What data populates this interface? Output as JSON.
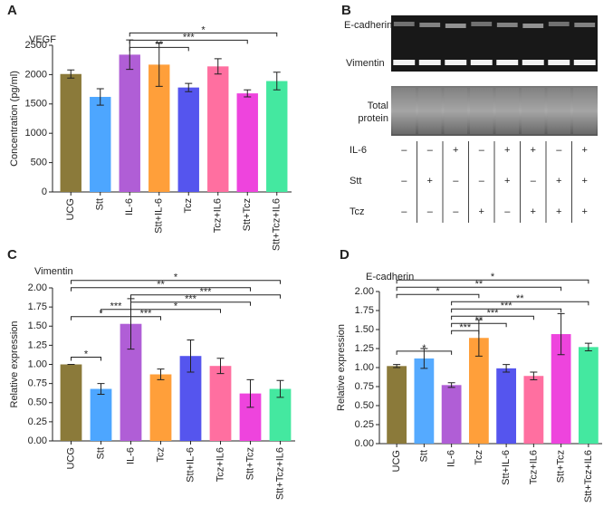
{
  "chart_data": [
    {
      "type": "bar",
      "label": "A",
      "title": "VEGF",
      "y_label": "Concentration (pg/ml)",
      "categories": [
        "UCG",
        "Stt",
        "IL-6",
        "Stt+IL-6",
        "Tcz",
        "Tcz+IL6",
        "Stt+Tcz",
        "Stt+Tcz+IL6"
      ],
      "values": [
        2010,
        1620,
        2340,
        2170,
        1780,
        2140,
        1680,
        1890
      ],
      "errors": [
        70,
        140,
        250,
        370,
        70,
        130,
        60,
        150
      ],
      "colors": [
        "#8b7a3a",
        "#4da6ff",
        "#b05ed6",
        "#ff9f3a",
        "#5555ee",
        "#ff6fa0",
        "#ee44dd",
        "#44e8a0"
      ],
      "ylim": [
        0,
        2500
      ],
      "yticks": [
        0,
        500,
        1000,
        1500,
        2000,
        2500
      ],
      "comparisons": [
        {
          "from": "IL-6",
          "to": "Tcz",
          "label": "**"
        },
        {
          "from": "IL-6",
          "to": "Stt+Tcz",
          "label": "***"
        },
        {
          "from": "IL-6",
          "to": "Stt+Tcz+IL6",
          "label": "*"
        }
      ]
    },
    {
      "type": "bar",
      "label": "C",
      "title": "Vimentin",
      "y_label": "Relative expression",
      "categories": [
        "UCG",
        "Stt",
        "IL-6",
        "Tcz",
        "Stt+IL-6",
        "Tcz+IL6",
        "Stt+Tcz",
        "Stt+Tcz+IL6"
      ],
      "values": [
        1.0,
        0.68,
        1.53,
        0.87,
        1.11,
        0.98,
        0.62,
        0.68
      ],
      "errors": [
        0,
        0.07,
        0.33,
        0.07,
        0.21,
        0.1,
        0.18,
        0.11
      ],
      "colors": [
        "#8b7a3a",
        "#4da6ff",
        "#b05ed6",
        "#ff9f3a",
        "#5555ee",
        "#ff6fa0",
        "#ee44dd",
        "#44e8a0"
      ],
      "ylim": [
        0,
        2
      ],
      "yticks": [
        {
          "value": 0,
          "label": "0.00"
        },
        {
          "value": 0.25,
          "label": "0.25"
        },
        {
          "value": 0.5,
          "label": "0.50"
        },
        {
          "value": 0.75,
          "label": "0.75"
        },
        {
          "value": 1,
          "label": "1.00"
        },
        {
          "value": 1.25,
          "label": "1.25"
        },
        {
          "value": 1.5,
          "label": "1.50"
        },
        {
          "value": 1.75,
          "label": "1.75"
        },
        {
          "value": 2,
          "label": "2.00"
        }
      ],
      "comparisons": [
        {
          "from": "UCG",
          "to": "Stt",
          "label": "*"
        },
        {
          "from": "UCG",
          "to": "IL-6",
          "label": "*"
        },
        {
          "from": "Stt",
          "to": "IL-6",
          "label": "***"
        },
        {
          "from": "IL-6",
          "to": "Tcz",
          "label": "***"
        },
        {
          "from": "IL-6",
          "to": "Tcz+IL6",
          "label": "*"
        },
        {
          "from": "IL-6",
          "to": "Stt+Tcz",
          "label": "***"
        },
        {
          "from": "IL-6",
          "to": "Stt+Tcz+IL6",
          "label": "***"
        },
        {
          "from": "UCG",
          "to": "Stt+Tcz",
          "label": "**"
        },
        {
          "from": "UCG",
          "to": "Stt+Tcz+IL6",
          "label": "*"
        }
      ]
    },
    {
      "type": "bar",
      "label": "D",
      "title": "E-cadherin",
      "y_label": "Relative expression",
      "categories": [
        "UCG",
        "Stt",
        "IL-6",
        "Tcz",
        "Stt+IL-6",
        "Tcz+IL6",
        "Stt+Tcz",
        "Stt+Tcz+IL6"
      ],
      "values": [
        1.02,
        1.12,
        0.77,
        1.39,
        0.99,
        0.89,
        1.44,
        1.27
      ],
      "errors": [
        0.02,
        0.13,
        0.03,
        0.24,
        0.05,
        0.05,
        0.27,
        0.05
      ],
      "colors": [
        "#8b7a3a",
        "#55aaff",
        "#b05ed6",
        "#ff9f3a",
        "#5555ee",
        "#ff6fa0",
        "#ee44dd",
        "#44e8a0"
      ],
      "ylim": [
        0,
        2
      ],
      "yticks": [
        {
          "value": 0,
          "label": "0.00"
        },
        {
          "value": 0.25,
          "label": "0.25"
        },
        {
          "value": 0.5,
          "label": "0.50"
        },
        {
          "value": 0.75,
          "label": "0.75"
        },
        {
          "value": 1,
          "label": "1.00"
        },
        {
          "value": 1.25,
          "label": "1.25"
        },
        {
          "value": 1.5,
          "label": "1.50"
        },
        {
          "value": 1.75,
          "label": "1.75"
        },
        {
          "value": 2,
          "label": "2.00"
        }
      ],
      "comparisons": [
        {
          "from": "UCG",
          "to": "IL-6",
          "label": "*"
        },
        {
          "from": "IL-6",
          "to": "Tcz",
          "label": "***"
        },
        {
          "from": "IL-6",
          "to": "Stt+IL-6",
          "label": "**"
        },
        {
          "from": "IL-6",
          "to": "Tcz+IL6",
          "label": "***"
        },
        {
          "from": "IL-6",
          "to": "Stt+Tcz",
          "label": "***"
        },
        {
          "from": "IL-6",
          "to": "Stt+Tcz+IL6",
          "label": "**"
        },
        {
          "from": "UCG",
          "to": "Tcz",
          "label": "*"
        },
        {
          "from": "UCG",
          "to": "Stt+Tcz",
          "label": "**"
        },
        {
          "from": "UCG",
          "to": "Stt+Tcz+IL6",
          "label": "*"
        }
      ]
    }
  ],
  "blot": {
    "label": "B",
    "bands": [
      "E-cadherin",
      "Vimentin"
    ],
    "loading_label": [
      "Total",
      "protein"
    ],
    "rows": [
      {
        "name": "IL-6",
        "marks": [
          "–",
          "–",
          "+",
          "–",
          "+",
          "+",
          "–",
          "+"
        ]
      },
      {
        "name": "Stt",
        "marks": [
          "–",
          "+",
          "–",
          "–",
          "+",
          "–",
          "+",
          "+"
        ]
      },
      {
        "name": "Tcz",
        "marks": [
          "–",
          "–",
          "–",
          "+",
          "–",
          "+",
          "+",
          "+"
        ]
      }
    ]
  }
}
